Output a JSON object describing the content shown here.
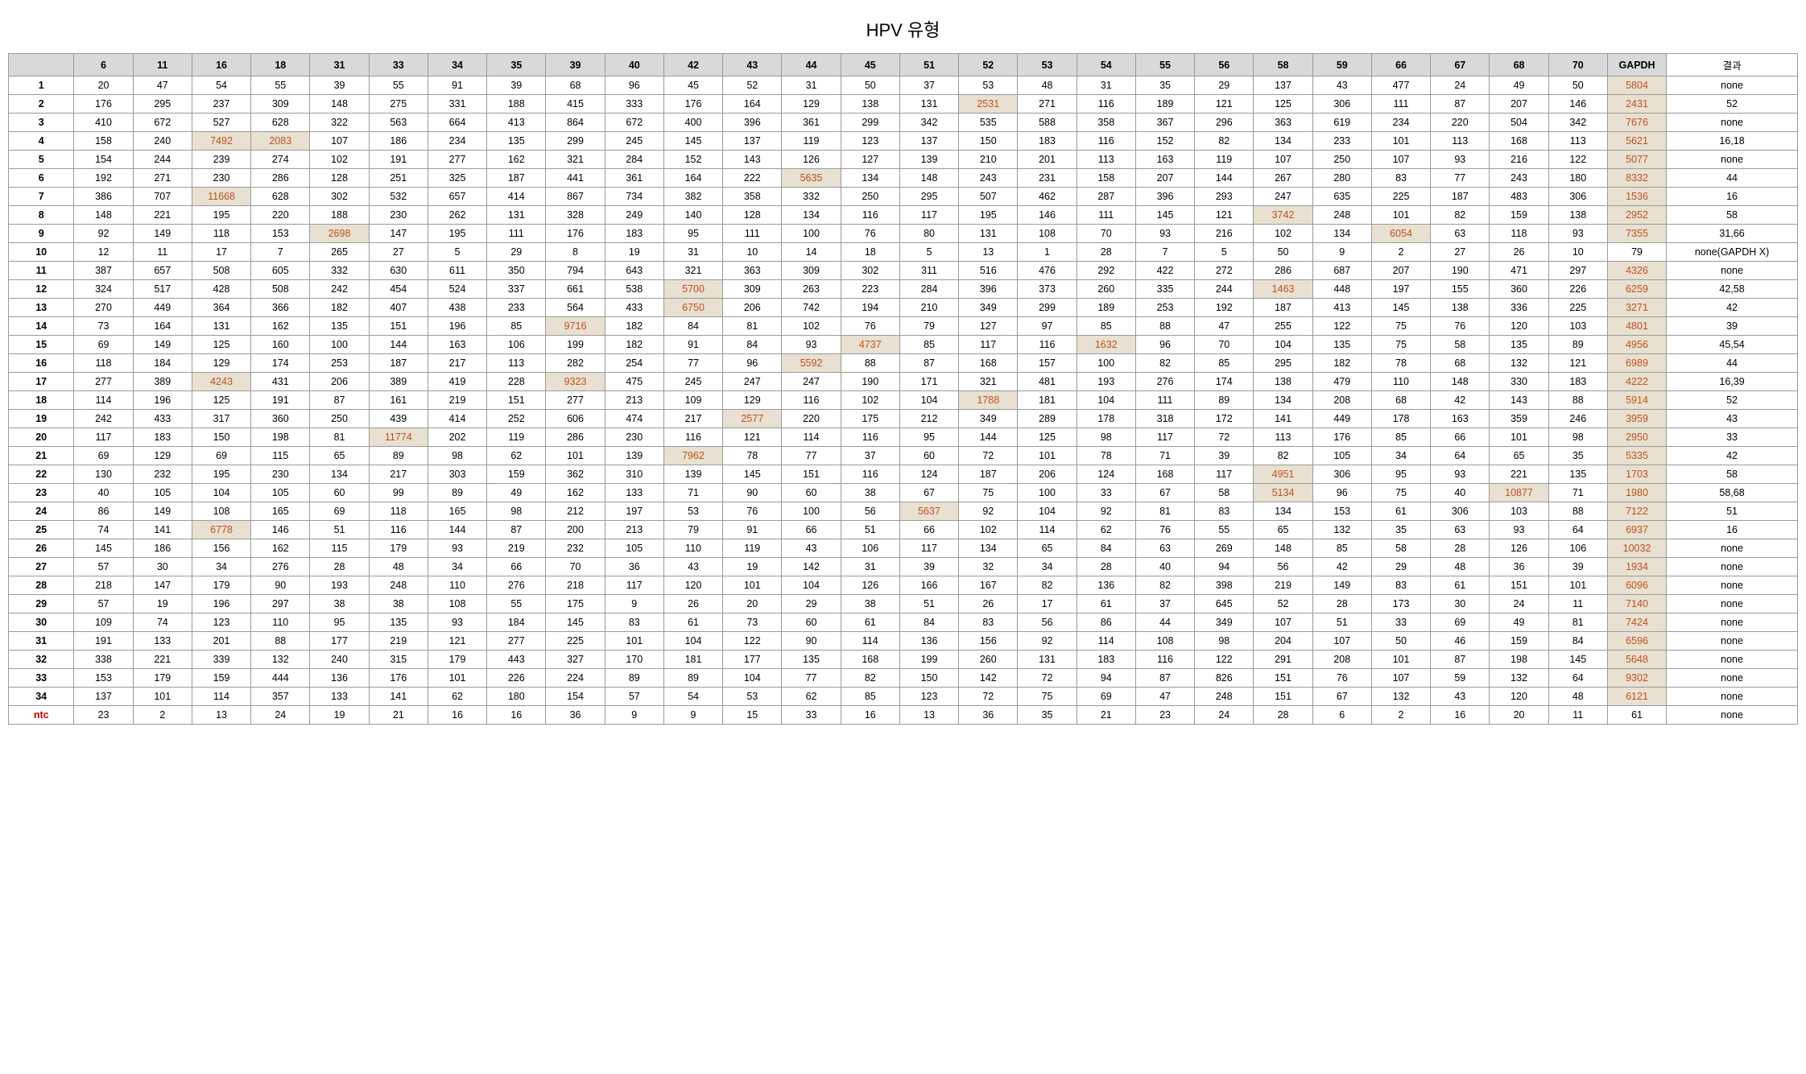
{
  "title": "HPV 유형",
  "columns": [
    "6",
    "11",
    "16",
    "18",
    "31",
    "33",
    "34",
    "35",
    "39",
    "40",
    "42",
    "43",
    "44",
    "45",
    "51",
    "52",
    "53",
    "54",
    "55",
    "56",
    "58",
    "59",
    "66",
    "67",
    "68",
    "70",
    "GAPDH"
  ],
  "result_header": "결과",
  "rows": [
    {
      "label": "1",
      "values": [
        20,
        47,
        54,
        55,
        39,
        55,
        91,
        39,
        68,
        96,
        45,
        52,
        31,
        50,
        37,
        53,
        48,
        31,
        35,
        29,
        137,
        43,
        477,
        24,
        49,
        50,
        5804
      ],
      "hl": [],
      "gapdh_hl": true,
      "result": "none"
    },
    {
      "label": "2",
      "values": [
        176,
        295,
        237,
        309,
        148,
        275,
        331,
        188,
        415,
        333,
        176,
        164,
        129,
        138,
        131,
        2531,
        271,
        116,
        189,
        121,
        125,
        306,
        111,
        87,
        207,
        146,
        2431
      ],
      "hl": [
        15
      ],
      "gapdh_hl": true,
      "result": "52"
    },
    {
      "label": "3",
      "values": [
        410,
        672,
        527,
        628,
        322,
        563,
        664,
        413,
        864,
        672,
        400,
        396,
        361,
        299,
        342,
        535,
        588,
        358,
        367,
        296,
        363,
        619,
        234,
        220,
        504,
        342,
        7676
      ],
      "hl": [],
      "gapdh_hl": true,
      "result": "none"
    },
    {
      "label": "4",
      "values": [
        158,
        240,
        7492,
        2083,
        107,
        186,
        234,
        135,
        299,
        245,
        145,
        137,
        119,
        123,
        137,
        150,
        183,
        116,
        152,
        82,
        134,
        233,
        101,
        113,
        168,
        113,
        5621
      ],
      "hl": [
        2,
        3
      ],
      "gapdh_hl": true,
      "result": "16,18"
    },
    {
      "label": "5",
      "values": [
        154,
        244,
        239,
        274,
        102,
        191,
        277,
        162,
        321,
        284,
        152,
        143,
        126,
        127,
        139,
        210,
        201,
        113,
        163,
        119,
        107,
        250,
        107,
        93,
        216,
        122,
        5077
      ],
      "hl": [],
      "gapdh_hl": true,
      "result": "none"
    },
    {
      "label": "6",
      "values": [
        192,
        271,
        230,
        286,
        128,
        251,
        325,
        187,
        441,
        361,
        164,
        222,
        5635,
        134,
        148,
        243,
        231,
        158,
        207,
        144,
        267,
        280,
        83,
        77,
        243,
        180,
        8332
      ],
      "hl": [
        12
      ],
      "gapdh_hl": true,
      "result": "44"
    },
    {
      "label": "7",
      "values": [
        386,
        707,
        11668,
        628,
        302,
        532,
        657,
        414,
        867,
        734,
        382,
        358,
        332,
        250,
        295,
        507,
        462,
        287,
        396,
        293,
        247,
        635,
        225,
        187,
        483,
        306,
        1536
      ],
      "hl": [
        2
      ],
      "gapdh_hl": true,
      "result": "16"
    },
    {
      "label": "8",
      "values": [
        148,
        221,
        195,
        220,
        188,
        230,
        262,
        131,
        328,
        249,
        140,
        128,
        134,
        116,
        117,
        195,
        146,
        111,
        145,
        121,
        3742,
        248,
        101,
        82,
        159,
        138,
        2952
      ],
      "hl": [
        20
      ],
      "gapdh_hl": true,
      "result": "58"
    },
    {
      "label": "9",
      "values": [
        92,
        149,
        118,
        153,
        2698,
        147,
        195,
        111,
        176,
        183,
        95,
        111,
        100,
        76,
        80,
        131,
        108,
        70,
        93,
        216,
        102,
        134,
        6054,
        63,
        118,
        93,
        7355
      ],
      "hl": [
        4,
        22
      ],
      "gapdh_hl": true,
      "result": "31,66"
    },
    {
      "label": "10",
      "values": [
        12,
        11,
        17,
        7,
        265,
        27,
        5,
        29,
        8,
        19,
        31,
        10,
        14,
        18,
        5,
        13,
        1,
        28,
        7,
        5,
        50,
        9,
        2,
        27,
        26,
        10,
        79
      ],
      "hl": [],
      "gapdh_hl": false,
      "result": "none(GAPDH X)"
    },
    {
      "label": "11",
      "values": [
        387,
        657,
        508,
        605,
        332,
        630,
        611,
        350,
        794,
        643,
        321,
        363,
        309,
        302,
        311,
        516,
        476,
        292,
        422,
        272,
        286,
        687,
        207,
        190,
        471,
        297,
        4326
      ],
      "hl": [],
      "gapdh_hl": true,
      "result": "none"
    },
    {
      "label": "12",
      "values": [
        324,
        517,
        428,
        508,
        242,
        454,
        524,
        337,
        661,
        538,
        5700,
        309,
        263,
        223,
        284,
        396,
        373,
        260,
        335,
        244,
        1463,
        448,
        197,
        155,
        360,
        226,
        6259
      ],
      "hl": [
        10,
        20
      ],
      "gapdh_hl": true,
      "result": "42,58"
    },
    {
      "label": "13",
      "values": [
        270,
        449,
        364,
        366,
        182,
        407,
        438,
        233,
        564,
        433,
        6750,
        206,
        742,
        194,
        210,
        349,
        299,
        189,
        253,
        192,
        187,
        413,
        145,
        138,
        336,
        225,
        3271
      ],
      "hl": [
        10
      ],
      "gapdh_hl": true,
      "result": "42"
    },
    {
      "label": "14",
      "values": [
        73,
        164,
        131,
        162,
        135,
        151,
        196,
        85,
        9716,
        182,
        84,
        81,
        102,
        76,
        79,
        127,
        97,
        85,
        88,
        47,
        255,
        122,
        75,
        76,
        120,
        103,
        4801
      ],
      "hl": [
        8
      ],
      "gapdh_hl": true,
      "result": "39"
    },
    {
      "label": "15",
      "values": [
        69,
        149,
        125,
        160,
        100,
        144,
        163,
        106,
        199,
        182,
        91,
        84,
        93,
        4737,
        85,
        117,
        116,
        1632,
        96,
        70,
        104,
        135,
        75,
        58,
        135,
        89,
        4956
      ],
      "hl": [
        13,
        17
      ],
      "gapdh_hl": true,
      "result": "45,54"
    },
    {
      "label": "16",
      "values": [
        118,
        184,
        129,
        174,
        253,
        187,
        217,
        113,
        282,
        254,
        77,
        96,
        5592,
        88,
        87,
        168,
        157,
        100,
        82,
        85,
        295,
        182,
        78,
        68,
        132,
        121,
        6989
      ],
      "hl": [
        12
      ],
      "gapdh_hl": true,
      "result": "44"
    },
    {
      "label": "17",
      "values": [
        277,
        389,
        4243,
        431,
        206,
        389,
        419,
        228,
        9323,
        475,
        245,
        247,
        247,
        190,
        171,
        321,
        481,
        193,
        276,
        174,
        138,
        479,
        110,
        148,
        330,
        183,
        4222
      ],
      "hl": [
        2,
        8
      ],
      "gapdh_hl": true,
      "result": "16,39"
    },
    {
      "label": "18",
      "values": [
        114,
        196,
        125,
        191,
        87,
        161,
        219,
        151,
        277,
        213,
        109,
        129,
        116,
        102,
        104,
        1788,
        181,
        104,
        111,
        89,
        134,
        208,
        68,
        42,
        143,
        88,
        5914
      ],
      "hl": [
        15
      ],
      "gapdh_hl": true,
      "result": "52"
    },
    {
      "label": "19",
      "values": [
        242,
        433,
        317,
        360,
        250,
        439,
        414,
        252,
        606,
        474,
        217,
        2577,
        220,
        175,
        212,
        349,
        289,
        178,
        318,
        172,
        141,
        449,
        178,
        163,
        359,
        246,
        3959
      ],
      "hl": [
        11
      ],
      "gapdh_hl": true,
      "result": "43"
    },
    {
      "label": "20",
      "values": [
        117,
        183,
        150,
        198,
        81,
        11774,
        202,
        119,
        286,
        230,
        116,
        121,
        114,
        116,
        95,
        144,
        125,
        98,
        117,
        72,
        113,
        176,
        85,
        66,
        101,
        98,
        2950
      ],
      "hl": [
        5
      ],
      "gapdh_hl": true,
      "result": "33"
    },
    {
      "label": "21",
      "values": [
        69,
        129,
        69,
        115,
        65,
        89,
        98,
        62,
        101,
        139,
        7962,
        78,
        77,
        37,
        60,
        72,
        101,
        78,
        71,
        39,
        82,
        105,
        34,
        64,
        65,
        35,
        5335
      ],
      "hl": [
        10
      ],
      "gapdh_hl": true,
      "result": "42"
    },
    {
      "label": "22",
      "values": [
        130,
        232,
        195,
        230,
        134,
        217,
        303,
        159,
        362,
        310,
        139,
        145,
        151,
        116,
        124,
        187,
        206,
        124,
        168,
        117,
        4951,
        306,
        95,
        93,
        221,
        135,
        1703
      ],
      "hl": [
        20
      ],
      "gapdh_hl": true,
      "result": "58"
    },
    {
      "label": "23",
      "values": [
        40,
        105,
        104,
        105,
        60,
        99,
        89,
        49,
        162,
        133,
        71,
        90,
        60,
        38,
        67,
        75,
        100,
        33,
        67,
        58,
        5134,
        96,
        75,
        40,
        10877,
        71,
        1980
      ],
      "hl": [
        20,
        24
      ],
      "gapdh_hl": true,
      "result": "58,68"
    },
    {
      "label": "24",
      "values": [
        86,
        149,
        108,
        165,
        69,
        118,
        165,
        98,
        212,
        197,
        53,
        76,
        100,
        56,
        5637,
        92,
        104,
        92,
        81,
        83,
        134,
        153,
        61,
        306,
        103,
        88,
        7122
      ],
      "hl": [
        14
      ],
      "gapdh_hl": true,
      "result": "51"
    },
    {
      "label": "25",
      "values": [
        74,
        141,
        6778,
        146,
        51,
        116,
        144,
        87,
        200,
        213,
        79,
        91,
        66,
        51,
        66,
        102,
        114,
        62,
        76,
        55,
        65,
        132,
        35,
        63,
        93,
        64,
        6937
      ],
      "hl": [
        2
      ],
      "gapdh_hl": true,
      "result": "16"
    },
    {
      "label": "26",
      "values": [
        145,
        186,
        156,
        162,
        115,
        179,
        93,
        219,
        232,
        105,
        110,
        119,
        43,
        106,
        117,
        134,
        65,
        84,
        63,
        269,
        148,
        85,
        58,
        28,
        126,
        106,
        10032
      ],
      "hl": [],
      "gapdh_hl": true,
      "result": "none"
    },
    {
      "label": "27",
      "values": [
        57,
        30,
        34,
        276,
        28,
        48,
        34,
        66,
        70,
        36,
        43,
        19,
        142,
        31,
        39,
        32,
        34,
        28,
        40,
        94,
        56,
        42,
        29,
        48,
        36,
        39,
        1934
      ],
      "hl": [],
      "gapdh_hl": true,
      "result": "none"
    },
    {
      "label": "28",
      "values": [
        218,
        147,
        179,
        90,
        193,
        248,
        110,
        276,
        218,
        117,
        120,
        101,
        104,
        126,
        166,
        167,
        82,
        136,
        82,
        398,
        219,
        149,
        83,
        61,
        151,
        101,
        6096
      ],
      "hl": [],
      "gapdh_hl": true,
      "result": "none"
    },
    {
      "label": "29",
      "values": [
        57,
        19,
        196,
        297,
        38,
        38,
        108,
        55,
        175,
        9,
        26,
        20,
        29,
        38,
        51,
        26,
        17,
        61,
        37,
        645,
        52,
        28,
        173,
        30,
        24,
        11,
        7140
      ],
      "hl": [],
      "gapdh_hl": true,
      "result": "none"
    },
    {
      "label": "30",
      "values": [
        109,
        74,
        123,
        110,
        95,
        135,
        93,
        184,
        145,
        83,
        61,
        73,
        60,
        61,
        84,
        83,
        56,
        86,
        44,
        349,
        107,
        51,
        33,
        69,
        49,
        81,
        7424
      ],
      "hl": [],
      "gapdh_hl": true,
      "result": "none"
    },
    {
      "label": "31",
      "values": [
        191,
        133,
        201,
        88,
        177,
        219,
        121,
        277,
        225,
        101,
        104,
        122,
        90,
        114,
        136,
        156,
        92,
        114,
        108,
        98,
        204,
        107,
        50,
        46,
        159,
        84,
        6596
      ],
      "hl": [],
      "gapdh_hl": true,
      "result": "none"
    },
    {
      "label": "32",
      "values": [
        338,
        221,
        339,
        132,
        240,
        315,
        179,
        443,
        327,
        170,
        181,
        177,
        135,
        168,
        199,
        260,
        131,
        183,
        116,
        122,
        291,
        208,
        101,
        87,
        198,
        145,
        5648
      ],
      "hl": [],
      "gapdh_hl": true,
      "result": "none"
    },
    {
      "label": "33",
      "values": [
        153,
        179,
        159,
        444,
        136,
        176,
        101,
        226,
        224,
        89,
        89,
        104,
        77,
        82,
        150,
        142,
        72,
        94,
        87,
        826,
        151,
        76,
        107,
        59,
        132,
        64,
        9302
      ],
      "hl": [],
      "gapdh_hl": true,
      "result": "none"
    },
    {
      "label": "34",
      "values": [
        137,
        101,
        114,
        357,
        133,
        141,
        62,
        180,
        154,
        57,
        54,
        53,
        62,
        85,
        123,
        72,
        75,
        69,
        47,
        248,
        151,
        67,
        132,
        43,
        120,
        48,
        6121
      ],
      "hl": [],
      "gapdh_hl": true,
      "result": "none"
    },
    {
      "label": "ntc",
      "values": [
        23,
        2,
        13,
        24,
        19,
        21,
        16,
        16,
        36,
        9,
        9,
        15,
        33,
        16,
        13,
        36,
        35,
        21,
        23,
        24,
        28,
        6,
        2,
        16,
        20,
        11,
        61
      ],
      "hl": [],
      "gapdh_hl": false,
      "result": "none",
      "ntc": true
    }
  ]
}
